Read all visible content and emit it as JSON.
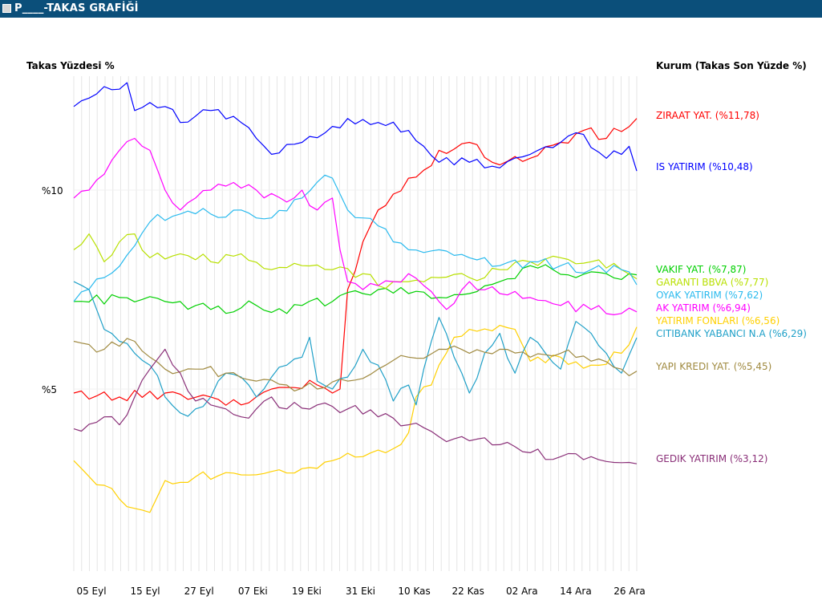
{
  "window": {
    "title": "P____-TAKAS GRAFİĞİ"
  },
  "chart_data": {
    "type": "line",
    "title": "",
    "ylabel": "Takas Yüzdesi %",
    "legend_title": "Kurum (Takas Son Yüzde %)",
    "legend_position": "right",
    "grid": "vertical",
    "y_ticks": [
      "%10",
      "%5"
    ],
    "x_ticks": [
      "05 Eyl",
      "15 Eyl",
      "27 Eyl",
      "07 Eki",
      "19 Eki",
      "31 Eki",
      "10 Kas",
      "22 Kas",
      "02 Ara",
      "14 Ara",
      "26 Ara"
    ],
    "ylim": [
      1.2,
      12.9
    ],
    "num_points": 72,
    "series": [
      {
        "name": "ZIRAAT YAT. (%11,78)",
        "color": "#ff0000",
        "anchors": [
          [
            0,
            4.9
          ],
          [
            6,
            4.8
          ],
          [
            12,
            4.9
          ],
          [
            18,
            4.8
          ],
          [
            22,
            4.6
          ],
          [
            26,
            5.0
          ],
          [
            32,
            5.1
          ],
          [
            34,
            4.9
          ],
          [
            35,
            5.0
          ],
          [
            36,
            7.5
          ],
          [
            38,
            8.7
          ],
          [
            40,
            9.5
          ],
          [
            42,
            9.9
          ],
          [
            44,
            10.3
          ],
          [
            46,
            10.5
          ],
          [
            48,
            11.0
          ],
          [
            52,
            11.2
          ],
          [
            55,
            10.7
          ],
          [
            60,
            10.8
          ],
          [
            64,
            11.2
          ],
          [
            67,
            11.5
          ],
          [
            70,
            11.3
          ],
          [
            74,
            11.8
          ]
        ]
      },
      {
        "name": "IS YATIRIM (%10,48)",
        "color": "#0000ff",
        "anchors": [
          [
            0,
            12.1
          ],
          [
            4,
            12.6
          ],
          [
            7,
            12.7
          ],
          [
            8,
            12.0
          ],
          [
            10,
            12.2
          ],
          [
            12,
            12.1
          ],
          [
            14,
            11.7
          ],
          [
            18,
            12.0
          ],
          [
            22,
            11.7
          ],
          [
            24,
            11.3
          ],
          [
            26,
            10.9
          ],
          [
            30,
            11.2
          ],
          [
            34,
            11.6
          ],
          [
            36,
            11.8
          ],
          [
            40,
            11.7
          ],
          [
            44,
            11.5
          ],
          [
            46,
            11.1
          ],
          [
            48,
            10.7
          ],
          [
            52,
            10.7
          ],
          [
            55,
            10.6
          ],
          [
            60,
            10.9
          ],
          [
            64,
            11.2
          ],
          [
            67,
            11.4
          ],
          [
            70,
            10.8
          ],
          [
            72,
            10.9
          ],
          [
            73,
            11.1
          ],
          [
            74,
            10.48
          ]
        ]
      },
      {
        "name": "VAKIF YAT. (%7,87)",
        "color": "#00d000",
        "anchors": [
          [
            0,
            7.2
          ],
          [
            6,
            7.3
          ],
          [
            12,
            7.2
          ],
          [
            18,
            7.0
          ],
          [
            24,
            7.1
          ],
          [
            28,
            6.9
          ],
          [
            30,
            7.1
          ],
          [
            34,
            7.2
          ],
          [
            38,
            7.4
          ],
          [
            40,
            7.5
          ],
          [
            44,
            7.4
          ],
          [
            48,
            7.3
          ],
          [
            52,
            7.4
          ],
          [
            56,
            7.7
          ],
          [
            60,
            8.1
          ],
          [
            63,
            8.0
          ],
          [
            66,
            7.8
          ],
          [
            70,
            7.9
          ],
          [
            74,
            7.87
          ]
        ]
      },
      {
        "name": "GARANTI BBVA (%7,77)",
        "color": "#b8e000",
        "anchors": [
          [
            0,
            8.5
          ],
          [
            2,
            8.9
          ],
          [
            4,
            8.2
          ],
          [
            6,
            8.7
          ],
          [
            8,
            8.9
          ],
          [
            10,
            8.3
          ],
          [
            14,
            8.4
          ],
          [
            18,
            8.2
          ],
          [
            22,
            8.4
          ],
          [
            26,
            8.0
          ],
          [
            30,
            8.1
          ],
          [
            34,
            8.0
          ],
          [
            38,
            7.9
          ],
          [
            40,
            7.6
          ],
          [
            42,
            7.7
          ],
          [
            44,
            7.7
          ],
          [
            48,
            7.8
          ],
          [
            52,
            7.8
          ],
          [
            56,
            8.0
          ],
          [
            60,
            8.2
          ],
          [
            64,
            8.3
          ],
          [
            68,
            8.2
          ],
          [
            72,
            8.0
          ],
          [
            74,
            7.77
          ]
        ]
      },
      {
        "name": "OYAK YATIRIM (%7,62)",
        "color": "#2abaee",
        "anchors": [
          [
            0,
            7.2
          ],
          [
            4,
            7.8
          ],
          [
            8,
            8.6
          ],
          [
            10,
            9.2
          ],
          [
            14,
            9.4
          ],
          [
            18,
            9.4
          ],
          [
            22,
            9.5
          ],
          [
            26,
            9.3
          ],
          [
            30,
            9.8
          ],
          [
            32,
            10.2
          ],
          [
            34,
            10.3
          ],
          [
            36,
            9.5
          ],
          [
            38,
            9.3
          ],
          [
            40,
            9.1
          ],
          [
            42,
            8.7
          ],
          [
            44,
            8.5
          ],
          [
            48,
            8.5
          ],
          [
            52,
            8.3
          ],
          [
            56,
            8.1
          ],
          [
            60,
            8.2
          ],
          [
            64,
            8.1
          ],
          [
            68,
            8.0
          ],
          [
            72,
            8.0
          ],
          [
            74,
            7.62
          ]
        ]
      },
      {
        "name": "AK YATIRIM (%6,94)",
        "color": "#ff00ff",
        "anchors": [
          [
            0,
            9.8
          ],
          [
            2,
            10.0
          ],
          [
            4,
            10.4
          ],
          [
            6,
            11.0
          ],
          [
            8,
            11.3
          ],
          [
            10,
            11.0
          ],
          [
            12,
            10.0
          ],
          [
            14,
            9.5
          ],
          [
            16,
            9.8
          ],
          [
            18,
            10.0
          ],
          [
            20,
            10.1
          ],
          [
            24,
            10.0
          ],
          [
            28,
            9.7
          ],
          [
            30,
            10.0
          ],
          [
            32,
            9.5
          ],
          [
            34,
            9.8
          ],
          [
            35,
            8.5
          ],
          [
            36,
            7.7
          ],
          [
            38,
            7.5
          ],
          [
            40,
            7.6
          ],
          [
            42,
            7.7
          ],
          [
            44,
            7.9
          ],
          [
            46,
            7.6
          ],
          [
            48,
            7.2
          ],
          [
            49,
            7.0
          ],
          [
            52,
            7.7
          ],
          [
            56,
            7.4
          ],
          [
            60,
            7.3
          ],
          [
            64,
            7.1
          ],
          [
            68,
            7.0
          ],
          [
            72,
            6.9
          ],
          [
            74,
            6.94
          ]
        ]
      },
      {
        "name": "YATIRIM FONLARI (%6,56)",
        "color": "#ffd000",
        "anchors": [
          [
            0,
            3.2
          ],
          [
            2,
            2.8
          ],
          [
            5,
            2.5
          ],
          [
            8,
            2.0
          ],
          [
            10,
            1.9
          ],
          [
            11,
            2.3
          ],
          [
            12,
            2.7
          ],
          [
            20,
            2.9
          ],
          [
            30,
            3.0
          ],
          [
            34,
            3.2
          ],
          [
            38,
            3.3
          ],
          [
            42,
            3.5
          ],
          [
            44,
            3.9
          ],
          [
            45,
            4.8
          ],
          [
            47,
            5.1
          ],
          [
            48,
            5.6
          ],
          [
            50,
            6.3
          ],
          [
            52,
            6.5
          ],
          [
            56,
            6.6
          ],
          [
            58,
            6.5
          ],
          [
            59,
            6.1
          ],
          [
            60,
            5.7
          ],
          [
            64,
            5.8
          ],
          [
            68,
            5.6
          ],
          [
            72,
            5.9
          ],
          [
            74,
            6.56
          ]
        ]
      },
      {
        "name": "CITIBANK YABANCI N.A (%6,29)",
        "color": "#1fa0c8",
        "anchors": [
          [
            0,
            7.7
          ],
          [
            2,
            7.5
          ],
          [
            3,
            7.0
          ],
          [
            4,
            6.5
          ],
          [
            6,
            6.2
          ],
          [
            8,
            5.9
          ],
          [
            10,
            5.6
          ],
          [
            12,
            4.8
          ],
          [
            14,
            4.4
          ],
          [
            16,
            4.5
          ],
          [
            18,
            4.8
          ],
          [
            20,
            5.4
          ],
          [
            22,
            5.3
          ],
          [
            24,
            4.8
          ],
          [
            26,
            5.3
          ],
          [
            28,
            5.6
          ],
          [
            30,
            5.8
          ],
          [
            31,
            6.3
          ],
          [
            32,
            5.2
          ],
          [
            34,
            5.0
          ],
          [
            36,
            5.3
          ],
          [
            38,
            6.0
          ],
          [
            40,
            5.6
          ],
          [
            42,
            4.7
          ],
          [
            44,
            5.1
          ],
          [
            45,
            4.6
          ],
          [
            46,
            5.5
          ],
          [
            47,
            6.2
          ],
          [
            48,
            6.8
          ],
          [
            50,
            5.8
          ],
          [
            52,
            4.9
          ],
          [
            54,
            5.9
          ],
          [
            56,
            6.4
          ],
          [
            58,
            5.4
          ],
          [
            60,
            6.3
          ],
          [
            62,
            5.9
          ],
          [
            64,
            5.5
          ],
          [
            66,
            6.7
          ],
          [
            68,
            6.4
          ],
          [
            70,
            5.9
          ],
          [
            72,
            5.4
          ],
          [
            74,
            6.29
          ]
        ]
      },
      {
        "name": "YAPI KREDI YAT. (%5,45)",
        "color": "#a08a40",
        "anchors": [
          [
            0,
            6.2
          ],
          [
            4,
            6.0
          ],
          [
            8,
            6.2
          ],
          [
            10,
            5.8
          ],
          [
            12,
            5.5
          ],
          [
            16,
            5.5
          ],
          [
            20,
            5.4
          ],
          [
            24,
            5.2
          ],
          [
            28,
            5.1
          ],
          [
            32,
            5.0
          ],
          [
            36,
            5.2
          ],
          [
            40,
            5.5
          ],
          [
            44,
            5.8
          ],
          [
            48,
            6.0
          ],
          [
            52,
            5.9
          ],
          [
            56,
            6.0
          ],
          [
            60,
            5.8
          ],
          [
            64,
            5.9
          ],
          [
            68,
            5.7
          ],
          [
            72,
            5.5
          ],
          [
            74,
            5.45
          ]
        ]
      },
      {
        "name": "GEDIK YATIRIM (%3,12)",
        "color": "#8a2f78",
        "anchors": [
          [
            0,
            4.0
          ],
          [
            4,
            4.3
          ],
          [
            6,
            4.1
          ],
          [
            8,
            4.8
          ],
          [
            10,
            5.5
          ],
          [
            12,
            6.0
          ],
          [
            14,
            5.4
          ],
          [
            16,
            4.7
          ],
          [
            18,
            4.6
          ],
          [
            20,
            4.5
          ],
          [
            22,
            4.3
          ],
          [
            24,
            4.5
          ],
          [
            26,
            4.8
          ],
          [
            28,
            4.5
          ],
          [
            32,
            4.6
          ],
          [
            36,
            4.5
          ],
          [
            40,
            4.3
          ],
          [
            44,
            4.1
          ],
          [
            48,
            3.8
          ],
          [
            52,
            3.7
          ],
          [
            56,
            3.6
          ],
          [
            60,
            3.4
          ],
          [
            64,
            3.3
          ],
          [
            68,
            3.3
          ],
          [
            72,
            3.15
          ],
          [
            74,
            3.12
          ]
        ]
      }
    ]
  }
}
